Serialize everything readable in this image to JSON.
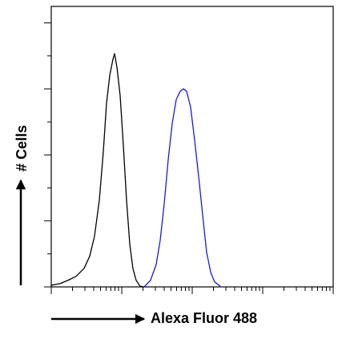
{
  "chart_data": {
    "type": "line",
    "xlabel": "Alexa Fluor 488",
    "ylabel": "# Cells",
    "xscale": "log",
    "xlim": [
      1,
      10000
    ],
    "xticks": [
      1,
      2,
      3,
      4,
      5,
      6,
      7,
      8,
      9,
      10,
      20,
      30,
      40,
      50,
      60,
      70,
      80,
      90,
      100,
      200,
      300,
      400,
      500,
      600,
      700,
      800,
      900,
      1000,
      2000,
      3000,
      4000,
      5000,
      6000,
      7000,
      8000,
      9000,
      10000
    ],
    "ylim": [
      0,
      8.5
    ],
    "yticks": [
      0,
      1,
      2,
      3,
      4,
      5,
      6,
      7,
      8
    ],
    "series": [
      {
        "color": "#000000",
        "x": [
          1.0,
          1.33,
          1.73,
          2.25,
          2.92,
          3.51,
          4.11,
          4.81,
          5.48,
          6.08,
          6.76,
          7.5,
          7.9,
          8.55,
          9.49,
          10.5,
          11.7,
          13.0,
          14.4,
          16.0,
          18.2,
          20.8
        ],
        "values": [
          0.05,
          0.1,
          0.2,
          0.32,
          0.56,
          0.93,
          1.54,
          2.63,
          4.1,
          5.56,
          6.41,
          6.9,
          7.07,
          6.66,
          5.8,
          4.34,
          2.63,
          1.29,
          0.56,
          0.2,
          0.02,
          0
        ]
      },
      {
        "color": "#1a1adc",
        "x": [
          20.8,
          25.6,
          30.8,
          35.1,
          40.0,
          45.6,
          52.0,
          59.3,
          67.6,
          75.0,
          83.2,
          94.9,
          108,
          123,
          141,
          160,
          183,
          208,
          250
        ],
        "values": [
          0,
          0.2,
          0.68,
          1.41,
          2.51,
          3.85,
          4.95,
          5.68,
          5.93,
          6.0,
          5.93,
          5.44,
          4.46,
          3.37,
          2.15,
          1.05,
          0.44,
          0.15,
          0.02
        ]
      }
    ]
  }
}
